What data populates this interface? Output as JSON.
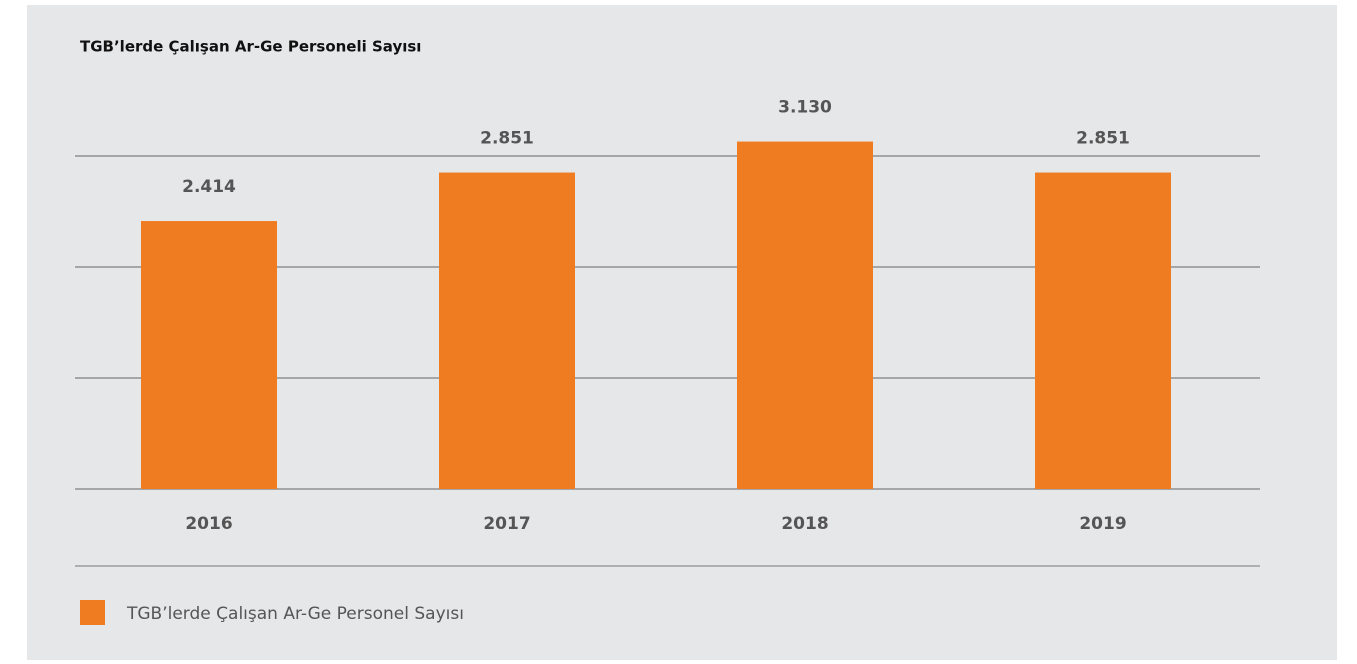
{
  "chart_data": {
    "type": "bar",
    "title": "TGB’lerde Çalışan Ar-Ge Personeli Sayısı",
    "categories": [
      "2016",
      "2017",
      "2018",
      "2019"
    ],
    "series": [
      {
        "name": "TGB’lerde Çalışan Ar-Ge Personel Sayısı",
        "color": "#f07c22",
        "values": [
          2414,
          2851,
          3130,
          2851
        ],
        "value_labels": [
          "2.414",
          "2.851",
          "3.130",
          "2.851"
        ]
      }
    ],
    "ylim": [
      0,
      3000
    ],
    "yticks": [
      0,
      1000,
      2000,
      3000
    ],
    "grid": true
  }
}
